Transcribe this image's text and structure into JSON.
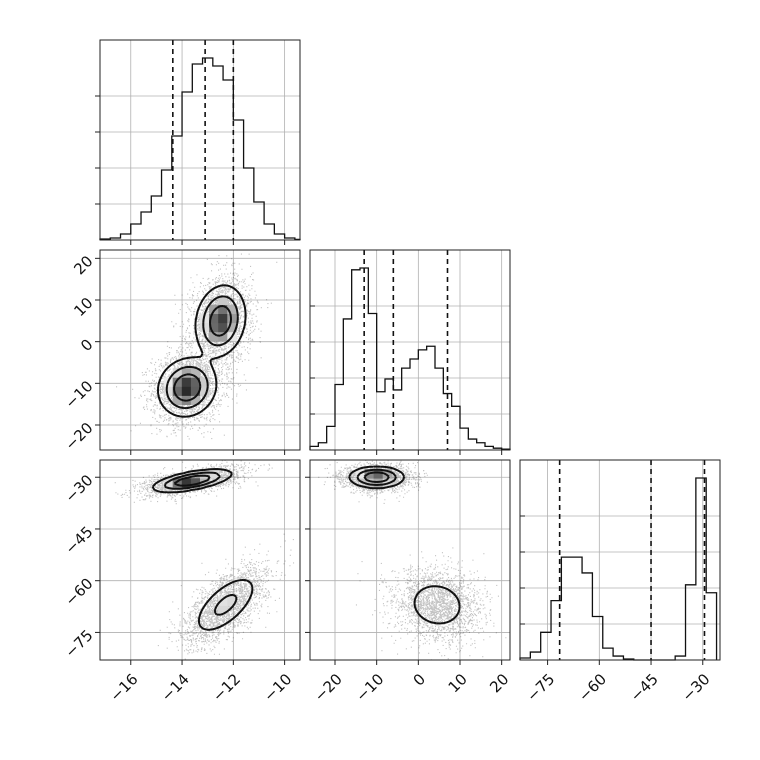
{
  "chart_data": {
    "type": "corner",
    "parameters": [
      {
        "id": "p1",
        "range": [
          -17.2,
          -9.4
        ],
        "ticks": [
          -16,
          -14,
          -12,
          -10
        ],
        "tick_labels": [
          "−16",
          "−14",
          "−12",
          "−10"
        ]
      },
      {
        "id": "p2",
        "range": [
          -26,
          22
        ],
        "ticks": [
          -20,
          -10,
          0,
          10,
          20
        ],
        "tick_labels": [
          "−20",
          "−10",
          "0",
          "10",
          "20"
        ]
      },
      {
        "id": "p3",
        "range": [
          -83,
          -25
        ],
        "ticks": [
          -75,
          -60,
          -45,
          -30
        ],
        "tick_labels": [
          "−75",
          "−60",
          "−45",
          "−30"
        ]
      }
    ],
    "histograms": [
      {
        "param": "p1",
        "edges": [
          -17.2,
          -16.8,
          -16.4,
          -16.0,
          -15.6,
          -15.2,
          -14.8,
          -14.4,
          -14.0,
          -13.6,
          -13.2,
          -12.8,
          -12.4,
          -12.0,
          -11.6,
          -11.2,
          -10.8,
          -10.4,
          -10.0,
          -9.6,
          -9.4
        ],
        "counts": [
          0.005,
          0.01,
          0.03,
          0.08,
          0.14,
          0.22,
          0.35,
          0.52,
          0.74,
          0.88,
          0.91,
          0.87,
          0.8,
          0.6,
          0.36,
          0.19,
          0.08,
          0.03,
          0.01,
          0.003
        ],
        "quantiles": [
          -14.36,
          -13.1,
          -12.0
        ]
      },
      {
        "param": "p2",
        "edges": [
          -26,
          -24,
          -22,
          -20,
          -18,
          -16,
          -14,
          -12,
          -10,
          -8,
          -6,
          -4,
          -2,
          0,
          2,
          4,
          6,
          8,
          10,
          12,
          14,
          16,
          18,
          20,
          22
        ],
        "counts": [
          0.02,
          0.04,
          0.13,
          0.36,
          0.72,
          0.99,
          1.0,
          0.75,
          0.32,
          0.39,
          0.33,
          0.45,
          0.5,
          0.55,
          0.57,
          0.45,
          0.31,
          0.24,
          0.12,
          0.06,
          0.04,
          0.02,
          0.01,
          0.005
        ],
        "quantiles": [
          -13,
          -6,
          7
        ]
      },
      {
        "param": "p3",
        "edges": [
          -83,
          -80,
          -77,
          -74,
          -71,
          -68,
          -65,
          -62,
          -59,
          -56,
          -53,
          -50,
          -47,
          -44,
          -41,
          -38,
          -35,
          -32,
          -29,
          -26
        ],
        "counts": [
          0.01,
          0.04,
          0.14,
          0.3,
          0.52,
          0.52,
          0.44,
          0.22,
          0.06,
          0.02,
          0.005,
          0.0,
          0.0,
          0.0,
          0.0,
          0.02,
          0.38,
          0.92,
          0.34
        ],
        "quantiles": [
          -71.5,
          -45,
          -29.5
        ]
      }
    ],
    "pair_panels": [
      {
        "x": "p1",
        "y": "p2",
        "modes": [
          {
            "mx": -13.8,
            "my": -11,
            "sx": 0.55,
            "sy": 3.4,
            "rho": 0.1,
            "w": 0.5
          },
          {
            "mx": -12.5,
            "my": 5,
            "sx": 0.48,
            "sy": 4.2,
            "rho": 0.15,
            "w": 0.5
          }
        ]
      },
      {
        "x": "p1",
        "y": "p3",
        "modes": [
          {
            "mx": -13.6,
            "my": -31,
            "sx": 0.75,
            "sy": 1.6,
            "rho": 0.6,
            "w": 0.5
          },
          {
            "mx": -12.3,
            "my": -67,
            "sx": 0.65,
            "sy": 4.5,
            "rho": 0.65,
            "w": 0.5
          }
        ]
      },
      {
        "x": "p2",
        "y": "p3",
        "modes": [
          {
            "mx": -10,
            "my": -30,
            "sx": 3.2,
            "sy": 1.5,
            "rho": 0.0,
            "w": 0.5
          },
          {
            "mx": 4.5,
            "my": -67,
            "sx": 4.2,
            "sy": 4.2,
            "rho": -0.1,
            "w": 0.5
          }
        ]
      }
    ],
    "grid": true,
    "title": "",
    "xlabel": "",
    "ylabel": ""
  }
}
